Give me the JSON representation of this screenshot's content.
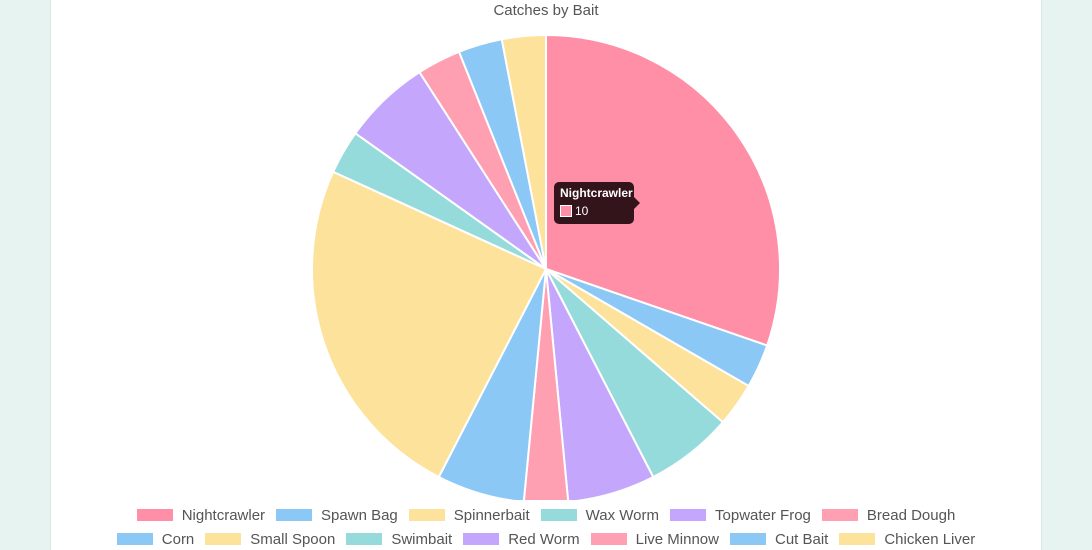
{
  "chart_data": {
    "type": "pie",
    "title": "Catches by Bait",
    "categories": [
      "Nightcrawler",
      "Spawn Bag",
      "Spinnerbait",
      "Wax Worm",
      "Topwater Frog",
      "Bread Dough",
      "Corn",
      "Small Spoon",
      "Swimbait",
      "Red Worm",
      "Live Minnow",
      "Cut Bait",
      "Chicken Liver"
    ],
    "values": [
      10,
      1,
      1,
      2,
      2,
      1,
      2,
      8,
      1,
      2,
      1,
      1,
      1
    ],
    "colors": [
      "#ff8fa6",
      "#8cc8f5",
      "#fde29b",
      "#96dbdb",
      "#c4a7fd",
      "#ff9fb2",
      "#8cc8f5",
      "#fde29b",
      "#96dbdb",
      "#c4a7fd",
      "#ff9fb2",
      "#8cc8f5",
      "#fde29b"
    ],
    "legend_position": "bottom",
    "tooltip": {
      "title": "Nightcrawler",
      "value": "10"
    }
  }
}
